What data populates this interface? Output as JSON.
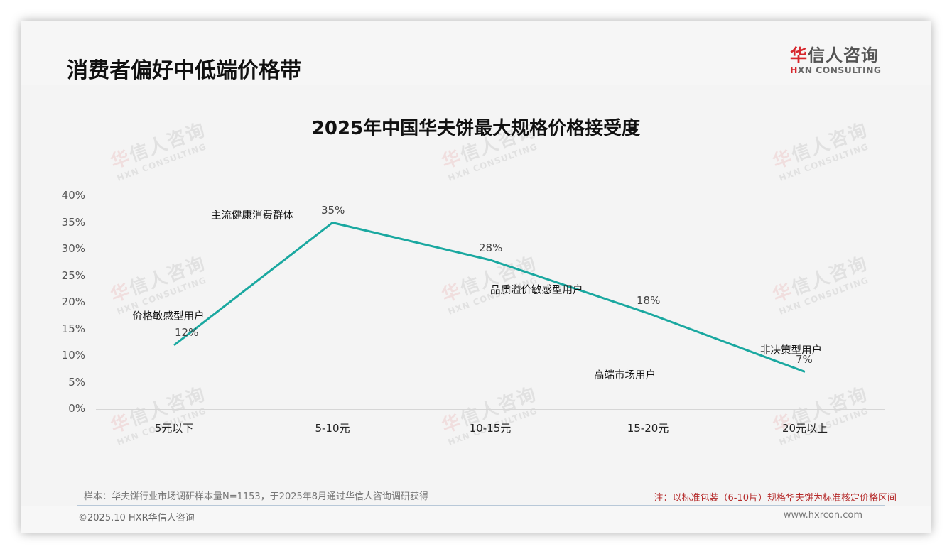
{
  "header": {
    "page_title": "消费者偏好中低端价格带",
    "logo": {
      "cn_accent": "华",
      "cn_rest": "信人咨询",
      "en_accent": "H",
      "en_rest": "XN CONSULTING"
    }
  },
  "watermark": {
    "cn_accent": "华",
    "cn_rest": "信人咨询",
    "en": "HXN CONSULTING"
  },
  "chart_data": {
    "type": "line",
    "title": "2025年中国华夫饼最大规格价格接受度",
    "categories": [
      "5元以下",
      "5-10元",
      "10-15元",
      "15-20元",
      "20元以上"
    ],
    "values": [
      12,
      35,
      28,
      18,
      7
    ],
    "value_labels": [
      "12%",
      "35%",
      "28%",
      "18%",
      "7%"
    ],
    "segment_labels": [
      "价格敏感型用户",
      "主流健康消费群体",
      "品质溢价敏感型用户",
      "高端市场用户",
      "非决策型用户"
    ],
    "xlabel": "",
    "ylabel": "",
    "ylim": [
      0,
      40
    ],
    "y_ticks": [
      "0%",
      "5%",
      "10%",
      "15%",
      "20%",
      "25%",
      "30%",
      "35%",
      "40%"
    ],
    "grid": false,
    "legend": "none",
    "line_color": "#1aa8a0"
  },
  "footer": {
    "sample_note": "样本：华夫饼行业市场调研样本量N=1153，于2025年8月通过华信人咨询调研获得",
    "red_note": "注：以标准包装（6-10片）规格华夫饼为标准核定价格区间",
    "copyright": "©2025.10 HXR华信人咨询",
    "website": "www.hxrcon.com"
  }
}
